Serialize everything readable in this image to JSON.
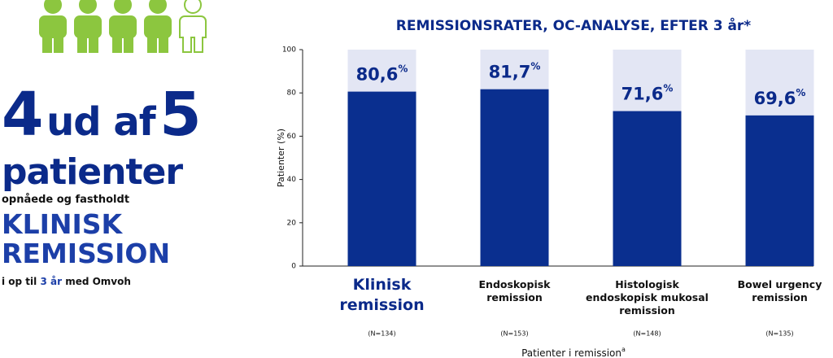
{
  "infographic": {
    "headline": [
      "4",
      "ud af",
      "5"
    ],
    "subject": "patienter",
    "intro": "opnåede og fastholdt",
    "highlight": [
      "KLINISK",
      "REMISSION"
    ],
    "footer": [
      "i op til",
      "3 år",
      "med Omvoh"
    ]
  },
  "chart_data": {
    "type": "bar",
    "title": "REMISSIONSRATER, OC-ANALYSE, EFTER 3 år*",
    "categories": [
      "Klinisk remission",
      "Endoskopisk remission",
      "Histologisk endoskopisk mukosal remission",
      "Bowel urgency remission"
    ],
    "n_labels": [
      "(N=134)",
      "(N=153)",
      "(N=148)",
      "(N=135)"
    ],
    "values": [
      80.6,
      81.7,
      71.6,
      69.6
    ],
    "value_labels": [
      "80,6%",
      "81,7%",
      "71,6%",
      "69,6%"
    ],
    "color": "#0a2f8f",
    "background_color": "#e3e6f4",
    "ylabel": "Patienter (%)",
    "xlabel": "Patienter i remission",
    "xlabel_note": "a",
    "ylim": [
      0,
      100
    ],
    "yticks": [
      0,
      20,
      40,
      60,
      80,
      100
    ],
    "grid": false
  }
}
